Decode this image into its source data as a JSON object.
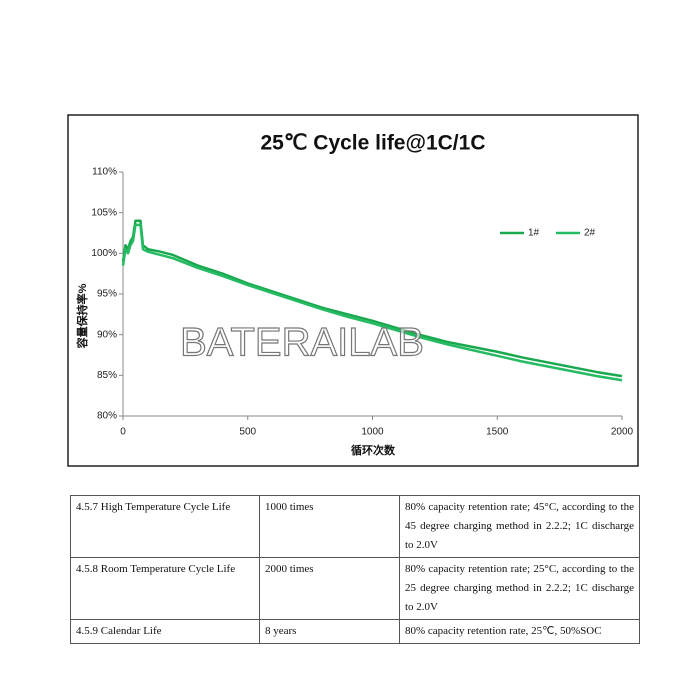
{
  "chart_data": {
    "type": "line",
    "title": "25℃ Cycle life@1C/1C",
    "x_label": "循环次数",
    "y_label": "容量保持率%",
    "watermark": "BATERAILAB",
    "x": [
      0,
      10,
      20,
      30,
      40,
      50,
      70,
      80,
      100,
      150,
      200,
      300,
      400,
      500,
      600,
      700,
      800,
      900,
      1000,
      1100,
      1200,
      1300,
      1400,
      1500,
      1600,
      1700,
      1800,
      1900,
      2000
    ],
    "series": [
      {
        "name": "1#",
        "color": "#1aa84f",
        "values": [
          99,
          101,
          100.5,
          101.5,
          102,
          104,
          104,
          101,
          100.5,
          100.2,
          99.8,
          98.5,
          97.5,
          96.3,
          95.3,
          94.3,
          93.3,
          92.5,
          91.7,
          90.8,
          89.9,
          89.1,
          88.5,
          87.9,
          87.2,
          86.6,
          86.0,
          85.4,
          84.9
        ]
      },
      {
        "name": "2#",
        "color": "#25bb62",
        "values": [
          98.5,
          100.5,
          100,
          101,
          101.5,
          103.5,
          103.5,
          100.5,
          100.2,
          99.8,
          99.4,
          98.2,
          97.2,
          96.1,
          95.1,
          94.1,
          93.1,
          92.2,
          91.4,
          90.5,
          89.6,
          88.8,
          88.1,
          87.4,
          86.7,
          86.1,
          85.5,
          84.9,
          84.4
        ]
      }
    ],
    "xlim": [
      0,
      2000
    ],
    "xticks": [
      0,
      500,
      1000,
      1500,
      2000
    ],
    "ylim": [
      80,
      110
    ],
    "yticks": [
      {
        "value": 80,
        "label": "80%"
      },
      {
        "value": 85,
        "label": "85%"
      },
      {
        "value": 90,
        "label": "90%"
      },
      {
        "value": 95,
        "label": "95%"
      },
      {
        "value": 100,
        "label": "100%"
      },
      {
        "value": 105,
        "label": "105%"
      },
      {
        "value": 110,
        "label": "110%"
      }
    ],
    "legend": "upper right",
    "grid": false
  },
  "table": {
    "rows": [
      [
        "4.5.7 High Temperature Cycle Life",
        "1000 times",
        "80% capacity retention rate; 45°C, according to the 45 degree charging method in 2.2.2; 1C discharge to 2.0V"
      ],
      [
        "4.5.8 Room Temperature Cycle Life",
        "2000 times",
        "80% capacity retention rate; 25°C, according to the 25 degree charging method in 2.2.2; 1C discharge to 2.0V"
      ],
      [
        "4.5.9 Calendar Life",
        "8 years",
        "80% capacity retention rate, 25℃, 50%SOC"
      ]
    ]
  }
}
